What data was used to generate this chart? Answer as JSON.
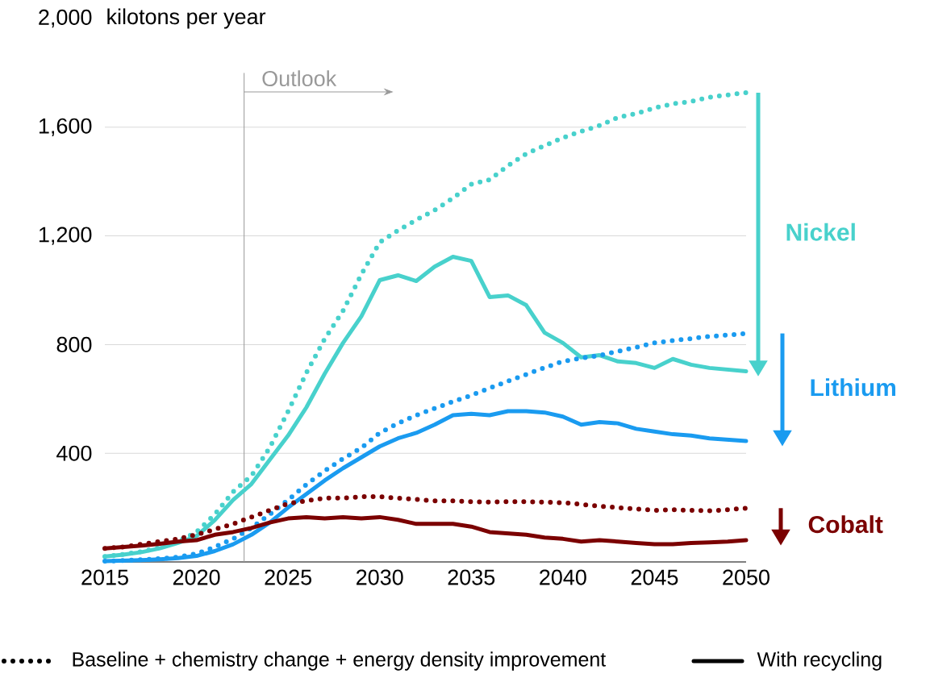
{
  "chart_data": {
    "type": "line",
    "ylabel": "kilotons per year",
    "x": [
      2015,
      2016,
      2017,
      2018,
      2019,
      2020,
      2021,
      2022,
      2023,
      2024,
      2025,
      2026,
      2027,
      2028,
      2029,
      2030,
      2031,
      2032,
      2033,
      2034,
      2035,
      2036,
      2037,
      2038,
      2039,
      2040,
      2041,
      2042,
      2043,
      2044,
      2045,
      2046,
      2047,
      2048,
      2049,
      2050
    ],
    "xlim": [
      2015,
      2050
    ],
    "xticks": [
      2015,
      2020,
      2025,
      2030,
      2035,
      2040,
      2045,
      2050
    ],
    "ylim": [
      0,
      2000
    ],
    "yticks": [
      {
        "value": 400,
        "label": "400"
      },
      {
        "value": 800,
        "label": "800"
      },
      {
        "value": 1200,
        "label": "1,200"
      },
      {
        "value": 1600,
        "label": "1,600"
      },
      {
        "value": 2000,
        "label": "2,000"
      }
    ],
    "grid": "y",
    "series": [
      {
        "color": "#48d1cc",
        "line_style": "dotted",
        "values": [
          20,
          28,
          38,
          52,
          75,
          110,
          175,
          258,
          317,
          421,
          554,
          696,
          821,
          924,
          1058,
          1176,
          1220,
          1259,
          1295,
          1339,
          1390,
          1407,
          1458,
          1502,
          1532,
          1561,
          1585,
          1606,
          1636,
          1650,
          1671,
          1686,
          1695,
          1710,
          1719,
          1727
        ]
      },
      {
        "name": "Nickel",
        "color": "#48d1cc",
        "line_style": "solid",
        "values": [
          20,
          27,
          36,
          50,
          70,
          95,
          154,
          228,
          287,
          376,
          465,
          569,
          693,
          806,
          904,
          1037,
          1055,
          1034,
          1087,
          1123,
          1108,
          975,
          981,
          945,
          844,
          806,
          753,
          761,
          738,
          732,
          714,
          747,
          726,
          714,
          708,
          702
        ]
      },
      {
        "color": "#1a9bf0",
        "line_style": "dotted",
        "values": [
          3,
          5,
          8,
          12,
          18,
          30,
          55,
          85,
          125,
          175,
          228,
          285,
          335,
          380,
          420,
          475,
          510,
          540,
          565,
          590,
          613,
          640,
          665,
          690,
          715,
          738,
          750,
          760,
          775,
          790,
          806,
          815,
          822,
          830,
          835,
          841
        ]
      },
      {
        "name": "Lithium",
        "color": "#1a9bf0",
        "line_style": "solid",
        "values": [
          3,
          5,
          7,
          10,
          14,
          22,
          40,
          65,
          100,
          145,
          200,
          250,
          300,
          345,
          385,
          425,
          455,
          475,
          505,
          540,
          545,
          540,
          555,
          555,
          550,
          535,
          505,
          515,
          510,
          490,
          480,
          470,
          465,
          455,
          450,
          445
        ]
      },
      {
        "color": "#7b0000",
        "line_style": "dotted",
        "values": [
          50,
          55,
          65,
          75,
          85,
          100,
          120,
          140,
          165,
          190,
          215,
          225,
          235,
          235,
          240,
          240,
          235,
          230,
          225,
          225,
          222,
          220,
          222,
          222,
          220,
          218,
          212,
          205,
          200,
          195,
          190,
          192,
          190,
          188,
          192,
          198
        ]
      },
      {
        "name": "Cobalt",
        "color": "#7b0000",
        "line_style": "solid",
        "values": [
          50,
          55,
          60,
          67,
          75,
          80,
          100,
          110,
          125,
          145,
          160,
          165,
          160,
          165,
          160,
          165,
          155,
          140,
          140,
          140,
          130,
          110,
          105,
          100,
          90,
          85,
          75,
          80,
          75,
          70,
          65,
          65,
          70,
          72,
          75,
          80
        ]
      }
    ],
    "ref_lines": [
      {
        "axis": "x",
        "value": 2022.6,
        "label": "Outlook",
        "color": "#999999"
      }
    ],
    "annotations": [
      "Baseline + chemistry change + energy density improvement",
      "With recycling"
    ]
  }
}
